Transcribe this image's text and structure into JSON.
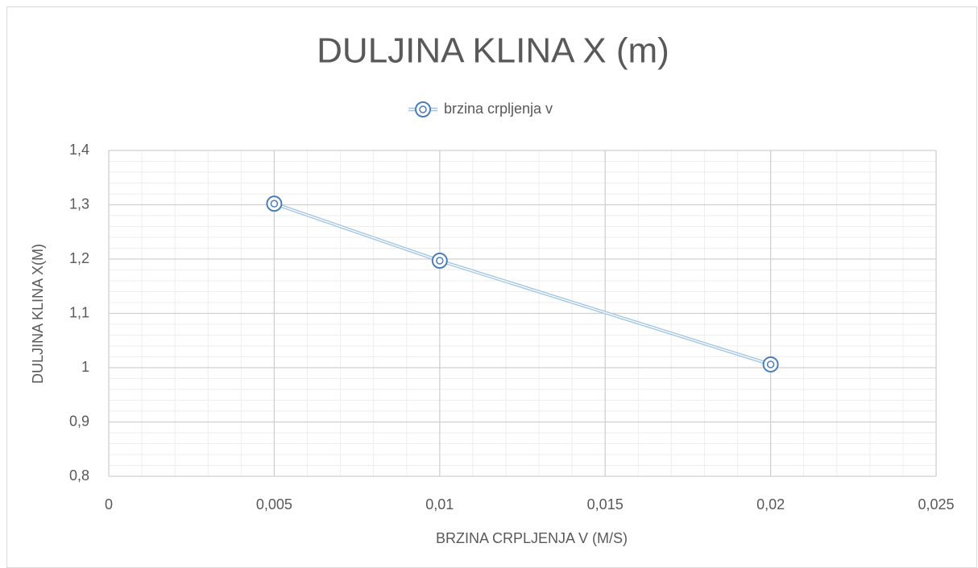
{
  "chart_data": {
    "type": "scatter",
    "title": "DULJINA KLINA X (m)",
    "x_label": "BRZINA CRPLJENJA V (M/S)",
    "y_label": "DULJINA KLINA X(M)",
    "x": [
      0.005,
      0.01,
      0.02
    ],
    "series": [
      {
        "name": "brzina crpljenja v",
        "color": "#4a7ebb",
        "values": [
          1.302,
          1.197,
          1.006
        ]
      }
    ],
    "xlim": [
      0,
      0.025
    ],
    "xticks": [
      0,
      {
        "value": 0.005,
        "label": "0,005"
      },
      {
        "value": 0.01,
        "label": "0,01"
      },
      {
        "value": 0.015,
        "label": "0,015"
      },
      {
        "value": 0.02,
        "label": "0,02"
      },
      {
        "value": 0.025,
        "label": "0,025"
      }
    ],
    "ylim": [
      0.8,
      1.4
    ],
    "yticks": [
      {
        "value": 0.8,
        "label": "0,8"
      },
      {
        "value": 0.9,
        "label": "0,9"
      },
      1,
      {
        "value": 1.1,
        "label": "1,1"
      },
      {
        "value": 1.2,
        "label": "1,2"
      },
      {
        "value": 1.3,
        "label": "1,3"
      },
      {
        "value": 1.4,
        "label": "1,4"
      }
    ],
    "grid": true,
    "minor_grid": true,
    "legend": "top"
  }
}
